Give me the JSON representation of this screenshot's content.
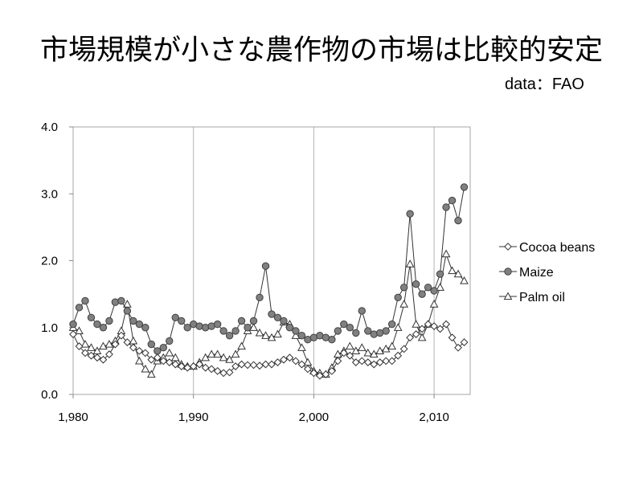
{
  "title": "市場規模が小さな農作物の市場は比較的安定",
  "source_note": "data：FAO",
  "chart_data": {
    "type": "line",
    "xlim": [
      1980,
      2013
    ],
    "ylim": [
      0,
      4
    ],
    "x_ticks": [
      1980,
      1990,
      2000,
      2010
    ],
    "x_tick_labels": [
      "1,980",
      "1,990",
      "2,000",
      "2,010"
    ],
    "y_ticks": [
      0,
      1,
      2,
      3,
      4
    ],
    "y_tick_labels": [
      "0.0",
      "1.0",
      "2.0",
      "3.0",
      "4.0"
    ],
    "grid": "vertical",
    "legend_position": "right",
    "x": [
      1980,
      1980.5,
      1981,
      1981.5,
      1982,
      1982.5,
      1983,
      1983.5,
      1984,
      1984.5,
      1985,
      1985.5,
      1986,
      1986.5,
      1987,
      1987.5,
      1988,
      1988.5,
      1989,
      1989.5,
      1990,
      1990.5,
      1991,
      1991.5,
      1992,
      1992.5,
      1993,
      1993.5,
      1994,
      1994.5,
      1995,
      1995.5,
      1996,
      1996.5,
      1997,
      1997.5,
      1998,
      1998.5,
      1999,
      1999.5,
      2000,
      2000.5,
      2001,
      2001.5,
      2002,
      2002.5,
      2003,
      2003.5,
      2004,
      2004.5,
      2005,
      2005.5,
      2006,
      2006.5,
      2007,
      2007.5,
      2008,
      2008.5,
      2009,
      2009.5,
      2010,
      2010.5,
      2011,
      2011.5,
      2012,
      2012.5
    ],
    "series": [
      {
        "name": "Cocoa beans",
        "marker": "diamond",
        "values": [
          0.9,
          0.72,
          0.62,
          0.58,
          0.55,
          0.52,
          0.6,
          0.75,
          0.88,
          0.78,
          0.7,
          0.65,
          0.62,
          0.52,
          0.55,
          0.5,
          0.48,
          0.45,
          0.42,
          0.4,
          0.42,
          0.45,
          0.4,
          0.38,
          0.35,
          0.32,
          0.33,
          0.42,
          0.45,
          0.44,
          0.44,
          0.43,
          0.45,
          0.45,
          0.48,
          0.52,
          0.55,
          0.5,
          0.45,
          0.38,
          0.32,
          0.28,
          0.3,
          0.35,
          0.5,
          0.62,
          0.58,
          0.48,
          0.5,
          0.48,
          0.45,
          0.48,
          0.5,
          0.5,
          0.58,
          0.68,
          0.85,
          0.9,
          0.98,
          1.05,
          1.02,
          0.98,
          1.05,
          0.85,
          0.7,
          0.78
        ]
      },
      {
        "name": "Maize",
        "marker": "circle",
        "values": [
          1.05,
          1.3,
          1.4,
          1.15,
          1.05,
          1.0,
          1.1,
          1.38,
          1.4,
          1.25,
          1.1,
          1.05,
          1.0,
          0.75,
          0.65,
          0.7,
          0.8,
          1.15,
          1.1,
          1.0,
          1.05,
          1.02,
          1.0,
          1.02,
          1.05,
          0.95,
          0.88,
          0.95,
          1.1,
          1.0,
          1.1,
          1.45,
          1.92,
          1.2,
          1.15,
          1.1,
          1.0,
          0.95,
          0.88,
          0.82,
          0.85,
          0.88,
          0.85,
          0.82,
          0.95,
          1.05,
          1.0,
          0.92,
          1.25,
          0.95,
          0.9,
          0.92,
          0.95,
          1.05,
          1.45,
          1.6,
          2.7,
          1.65,
          1.5,
          1.6,
          1.55,
          1.8,
          2.8,
          2.9,
          2.6,
          3.1
        ]
      },
      {
        "name": "Palm oil",
        "marker": "triangle",
        "values": [
          1.0,
          0.95,
          0.75,
          0.7,
          0.65,
          0.72,
          0.75,
          0.8,
          0.95,
          1.35,
          0.8,
          0.5,
          0.38,
          0.3,
          0.5,
          0.55,
          0.62,
          0.55,
          0.45,
          0.42,
          0.42,
          0.48,
          0.55,
          0.6,
          0.6,
          0.55,
          0.52,
          0.6,
          0.72,
          0.95,
          1.0,
          0.92,
          0.88,
          0.85,
          0.9,
          1.08,
          1.05,
          0.88,
          0.7,
          0.48,
          0.35,
          0.32,
          0.3,
          0.4,
          0.6,
          0.65,
          0.72,
          0.65,
          0.7,
          0.62,
          0.6,
          0.65,
          0.68,
          0.72,
          1.0,
          1.35,
          1.95,
          1.05,
          0.85,
          1.05,
          1.35,
          1.6,
          2.1,
          1.85,
          1.8,
          1.7
        ]
      }
    ]
  }
}
